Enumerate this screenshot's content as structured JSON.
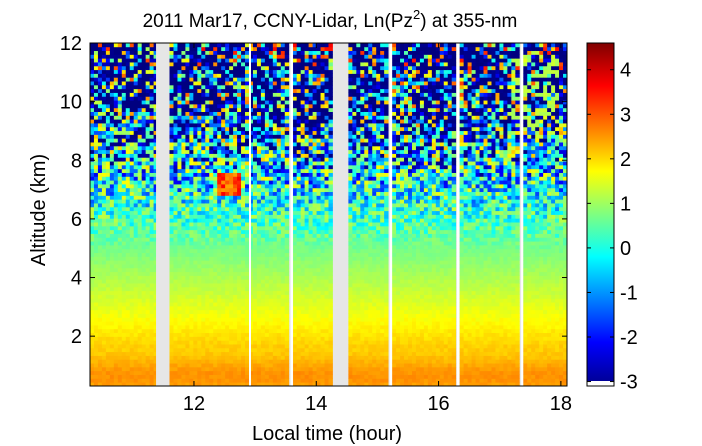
{
  "chart_data": {
    "type": "heatmap",
    "title": {
      "prefix": "2011 Mar17, CCNY-Lidar, Ln(Pz",
      "superscript": "2",
      "suffix": ") at 355-nm"
    },
    "xlabel": "Local time (hour)",
    "ylabel": "Altitude (km)",
    "xlim": [
      10.3,
      18.1
    ],
    "ylim": [
      0.3,
      12
    ],
    "xticks": [
      "12",
      "14",
      "16",
      "18"
    ],
    "yticks": [
      "2",
      "4",
      "6",
      "8",
      "10",
      "12"
    ],
    "colorbar": {
      "range": [
        -3.1,
        4.6
      ],
      "ticks": [
        "4",
        "3",
        "2",
        "1",
        "0",
        "-1",
        "-2",
        "-3"
      ],
      "colormap": "jet"
    },
    "gaps_hours": [
      [
        11.38,
        11.57
      ],
      [
        12.9,
        12.93
      ],
      [
        13.58,
        13.62
      ],
      [
        14.28,
        14.5
      ],
      [
        15.2,
        15.24
      ],
      [
        16.3,
        16.34
      ],
      [
        17.35,
        17.38
      ]
    ],
    "feature_regions": [
      {
        "kind": "cloud",
        "x": [
          12.4,
          12.8
        ],
        "y": [
          6.8,
          7.6
        ],
        "peak": 3.8
      },
      {
        "kind": "aerosol-layer",
        "x": [
          17.2,
          18.0
        ],
        "y": [
          8.8,
          11.6
        ],
        "peak": 1.2
      },
      {
        "kind": "boundary-layer",
        "x": [
          10.3,
          18.1
        ],
        "y": [
          0.3,
          1.6
        ],
        "peak": 2.6
      }
    ],
    "colors": {
      "gap": "#e6e6e6",
      "background": "#ffffff"
    }
  }
}
